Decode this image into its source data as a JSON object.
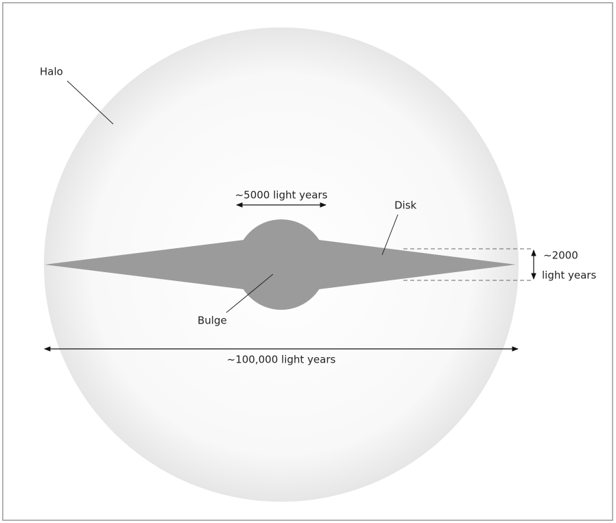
{
  "labels": {
    "halo": "Halo",
    "disk": "Disk",
    "bulge": "Bulge"
  },
  "dimensions": {
    "bulge_width": "~5000 light years",
    "disk_thickness": [
      "~2000",
      "light years"
    ],
    "diameter": "~100,000 light years"
  }
}
